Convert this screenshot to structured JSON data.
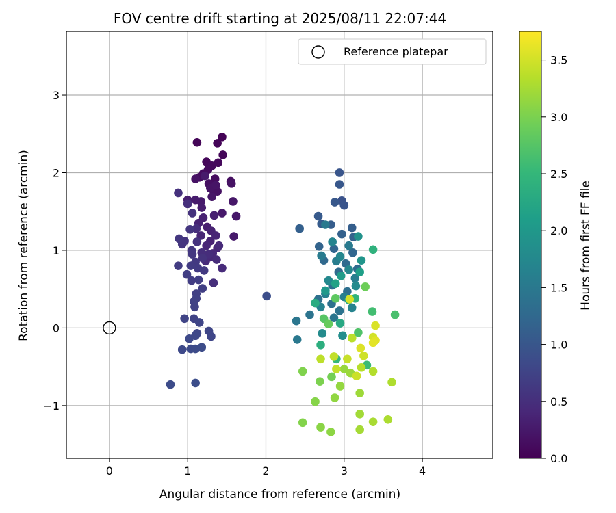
{
  "chart_data": {
    "type": "scatter",
    "title": "FOV centre drift starting at 2025/08/11 22:07:44",
    "xlabel": "Angular distance from reference (arcmin)",
    "ylabel": "Rotation from reference (arcmin)",
    "xlim": [
      -0.55,
      4.9
    ],
    "ylim": [
      -1.68,
      3.82
    ],
    "xticks": [
      0,
      1,
      2,
      3,
      4
    ],
    "yticks": [
      -1,
      0,
      1,
      2,
      3
    ],
    "xtick_labels": [
      "0",
      "1",
      "2",
      "3",
      "4"
    ],
    "ytick_labels": [
      "−1",
      "0",
      "1",
      "2",
      "3"
    ],
    "grid": true,
    "legend": {
      "placement": "top-right",
      "entries": [
        {
          "label": "Reference platepar"
        }
      ]
    },
    "reference_point": {
      "x": 0,
      "y": 0
    },
    "colorbar": {
      "label": "Hours from first FF file",
      "range": [
        0,
        3.75
      ],
      "ticks": [
        0,
        0.5,
        1,
        1.5,
        2,
        2.5,
        3,
        3.5
      ],
      "tick_labels": [
        "0.0",
        "0.5",
        "1.0",
        "1.5",
        "2.0",
        "2.5",
        "3.0",
        "3.5"
      ],
      "colormap": "viridis"
    },
    "points": [
      [
        1.44,
        2.46,
        0.02
      ],
      [
        1.38,
        2.38,
        0.03
      ],
      [
        1.12,
        2.39,
        0.04
      ],
      [
        1.45,
        2.23,
        0.05
      ],
      [
        1.24,
        2.14,
        0.06
      ],
      [
        1.39,
        2.13,
        0.08
      ],
      [
        1.31,
        2.09,
        0.09
      ],
      [
        1.26,
        2.04,
        0.1
      ],
      [
        1.2,
        1.99,
        0.11
      ],
      [
        1.35,
        1.92,
        0.12
      ],
      [
        1.15,
        1.94,
        0.13
      ],
      [
        1.55,
        1.89,
        0.14
      ],
      [
        1.27,
        1.86,
        0.15
      ],
      [
        1.33,
        1.77,
        0.16
      ],
      [
        1.38,
        1.76,
        0.17
      ],
      [
        1.1,
        1.92,
        0.18
      ],
      [
        1.56,
        1.86,
        0.19
      ],
      [
        1.29,
        1.8,
        0.2
      ],
      [
        1.36,
        1.84,
        0.21
      ],
      [
        1.31,
        1.69,
        0.22
      ],
      [
        1.58,
        1.63,
        0.23
      ],
      [
        1.62,
        1.44,
        0.24
      ],
      [
        1.44,
        1.48,
        0.25
      ],
      [
        1.59,
        1.18,
        0.26
      ],
      [
        1.22,
        1.96,
        0.27
      ],
      [
        1.17,
        1.63,
        0.28
      ],
      [
        1.1,
        1.65,
        0.29
      ],
      [
        1.18,
        1.55,
        0.3
      ],
      [
        1.0,
        1.65,
        0.31
      ],
      [
        1.25,
        1.3,
        0.32
      ],
      [
        1.34,
        1.45,
        0.33
      ],
      [
        1.2,
        1.42,
        0.34
      ],
      [
        1.3,
        1.25,
        0.35
      ],
      [
        1.14,
        1.35,
        0.36
      ],
      [
        1.29,
        1.12,
        0.37
      ],
      [
        1.36,
        1.19,
        0.38
      ],
      [
        1.17,
        1.19,
        0.39
      ],
      [
        1.38,
        1.03,
        0.4
      ],
      [
        1.24,
        1.06,
        0.41
      ],
      [
        1.28,
        0.91,
        0.42
      ],
      [
        1.32,
        0.96,
        0.43
      ],
      [
        1.4,
        1.06,
        0.44
      ],
      [
        1.23,
        0.86,
        0.45
      ],
      [
        1.44,
        0.77,
        0.46
      ],
      [
        1.37,
        0.88,
        0.47
      ],
      [
        1.27,
        0.95,
        0.48
      ],
      [
        1.18,
        0.97,
        0.49
      ],
      [
        1.33,
        0.58,
        0.5
      ],
      [
        1.11,
        1.28,
        0.51
      ],
      [
        1.0,
        1.6,
        0.52
      ],
      [
        0.88,
        1.74,
        0.53
      ],
      [
        1.06,
        1.48,
        0.54
      ],
      [
        1.19,
        0.9,
        0.55
      ],
      [
        1.12,
        1.11,
        0.56
      ],
      [
        0.96,
        1.12,
        0.57
      ],
      [
        0.93,
        1.08,
        0.58
      ],
      [
        1.03,
        1.27,
        0.59
      ],
      [
        0.89,
        1.15,
        0.6
      ],
      [
        1.05,
        1.0,
        0.61
      ],
      [
        1.06,
        0.95,
        0.62
      ],
      [
        1.1,
        0.85,
        0.63
      ],
      [
        1.21,
        0.74,
        0.64
      ],
      [
        1.13,
        0.77,
        0.65
      ],
      [
        1.04,
        0.8,
        0.66
      ],
      [
        0.88,
        0.8,
        0.67
      ],
      [
        1.05,
        0.61,
        0.68
      ],
      [
        0.99,
        0.69,
        0.69
      ],
      [
        1.14,
        0.62,
        0.7
      ],
      [
        1.19,
        0.51,
        0.71
      ],
      [
        1.11,
        0.44,
        0.72
      ],
      [
        1.11,
        0.38,
        0.73
      ],
      [
        1.08,
        0.34,
        0.74
      ],
      [
        1.09,
        0.27,
        0.75
      ],
      [
        1.08,
        0.12,
        0.76
      ],
      [
        0.96,
        0.12,
        0.77
      ],
      [
        1.15,
        0.07,
        0.78
      ],
      [
        1.27,
        -0.04,
        0.79
      ],
      [
        1.3,
        -0.11,
        0.8
      ],
      [
        1.12,
        -0.07,
        0.81
      ],
      [
        1.1,
        -0.1,
        0.82
      ],
      [
        1.02,
        -0.14,
        0.83
      ],
      [
        0.93,
        -0.28,
        0.84
      ],
      [
        1.04,
        -0.27,
        0.85
      ],
      [
        1.1,
        -0.27,
        0.86
      ],
      [
        1.18,
        -0.25,
        0.87
      ],
      [
        0.78,
        -0.73,
        0.88
      ],
      [
        1.1,
        -0.71,
        0.89
      ],
      [
        2.01,
        0.41,
        0.9
      ],
      [
        2.97,
        1.64,
        0.95
      ],
      [
        3.0,
        1.58,
        0.98
      ],
      [
        2.94,
        2.0,
        1.0
      ],
      [
        2.94,
        1.85,
        1.02
      ],
      [
        2.88,
        1.62,
        1.04
      ],
      [
        2.67,
        1.44,
        1.06
      ],
      [
        2.71,
        1.34,
        1.08
      ],
      [
        2.83,
        1.33,
        1.1
      ],
      [
        3.1,
        1.29,
        1.12
      ],
      [
        2.43,
        1.28,
        1.14
      ],
      [
        2.97,
        1.21,
        1.16
      ],
      [
        3.12,
        1.17,
        1.18
      ],
      [
        2.68,
        1.05,
        1.2
      ],
      [
        2.87,
        1.02,
        1.22
      ],
      [
        3.11,
        0.97,
        1.24
      ],
      [
        2.74,
        0.87,
        1.26
      ],
      [
        3.02,
        0.83,
        1.28
      ],
      [
        2.93,
        0.72,
        1.3
      ],
      [
        3.17,
        0.76,
        1.32
      ],
      [
        2.85,
        0.55,
        1.34
      ],
      [
        3.04,
        0.47,
        1.36
      ],
      [
        2.67,
        0.37,
        1.38
      ],
      [
        2.84,
        0.31,
        1.4
      ],
      [
        2.94,
        0.22,
        1.42
      ],
      [
        2.56,
        0.17,
        1.44
      ],
      [
        2.87,
        0.13,
        1.46
      ],
      [
        2.39,
        0.09,
        1.48
      ],
      [
        2.4,
        -0.15,
        1.5
      ],
      [
        2.76,
        1.33,
        1.52
      ],
      [
        3.06,
        1.06,
        1.54
      ],
      [
        2.71,
        0.93,
        1.56
      ],
      [
        2.9,
        0.86,
        1.58
      ],
      [
        3.14,
        0.64,
        1.6
      ],
      [
        2.76,
        0.44,
        1.62
      ],
      [
        3.0,
        0.4,
        1.64
      ],
      [
        2.7,
        0.27,
        1.66
      ],
      [
        3.1,
        0.26,
        1.68
      ],
      [
        2.85,
        1.11,
        1.7
      ],
      [
        2.95,
        0.92,
        1.72
      ],
      [
        3.06,
        0.75,
        1.74
      ],
      [
        2.8,
        0.61,
        1.76
      ],
      [
        3.15,
        0.54,
        1.78
      ],
      [
        2.72,
        -0.07,
        1.8
      ],
      [
        2.98,
        -0.1,
        1.85
      ],
      [
        3.18,
        1.18,
        1.9
      ],
      [
        3.22,
        0.87,
        1.95
      ],
      [
        2.76,
        0.48,
        2.0
      ],
      [
        2.96,
        0.67,
        2.05
      ],
      [
        3.2,
        0.72,
        2.1
      ],
      [
        2.89,
        0.57,
        2.15
      ],
      [
        3.06,
        0.36,
        2.2
      ],
      [
        2.95,
        0.06,
        2.25
      ],
      [
        2.63,
        0.32,
        2.3
      ],
      [
        2.7,
        -0.22,
        2.35
      ],
      [
        3.37,
        1.01,
        2.4
      ],
      [
        3.14,
        0.38,
        2.45
      ],
      [
        2.9,
        -0.4,
        2.5
      ],
      [
        3.29,
        -0.48,
        2.55
      ],
      [
        3.36,
        0.21,
        2.6
      ],
      [
        3.65,
        0.17,
        2.65
      ],
      [
        3.18,
        -0.06,
        2.7
      ],
      [
        2.74,
        0.12,
        2.75
      ],
      [
        2.89,
        0.38,
        2.8
      ],
      [
        2.8,
        0.05,
        2.85
      ],
      [
        3.27,
        0.53,
        2.9
      ],
      [
        2.84,
        -0.63,
        2.95
      ],
      [
        2.69,
        -0.69,
        3.0
      ],
      [
        2.47,
        -0.56,
        3.02
      ],
      [
        2.47,
        -1.22,
        3.04
      ],
      [
        2.63,
        -0.95,
        3.06
      ],
      [
        2.7,
        -1.28,
        3.08
      ],
      [
        2.83,
        -1.34,
        3.1
      ],
      [
        2.88,
        -0.9,
        3.12
      ],
      [
        2.95,
        -0.75,
        3.14
      ],
      [
        3.0,
        -0.53,
        3.16
      ],
      [
        3.08,
        -0.58,
        3.18
      ],
      [
        3.2,
        -0.84,
        3.2
      ],
      [
        3.2,
        -1.11,
        3.22
      ],
      [
        3.2,
        -1.31,
        3.24
      ],
      [
        3.37,
        -1.21,
        3.26
      ],
      [
        3.56,
        -1.18,
        3.28
      ],
      [
        3.61,
        -0.7,
        3.3
      ],
      [
        3.37,
        -0.56,
        3.32
      ],
      [
        3.22,
        -0.51,
        3.34
      ],
      [
        3.1,
        -0.13,
        3.36
      ],
      [
        2.7,
        -0.4,
        3.38
      ],
      [
        2.87,
        -0.37,
        3.4
      ],
      [
        2.9,
        -0.53,
        3.42
      ],
      [
        3.04,
        -0.4,
        3.44
      ],
      [
        3.16,
        -0.62,
        3.46
      ],
      [
        3.25,
        -0.36,
        3.48
      ],
      [
        3.37,
        -0.12,
        3.5
      ],
      [
        3.07,
        0.37,
        3.52
      ],
      [
        3.4,
        0.03,
        3.54
      ],
      [
        3.21,
        -0.26,
        3.56
      ],
      [
        3.4,
        -0.16,
        3.58
      ],
      [
        3.37,
        -0.19,
        3.6
      ]
    ]
  }
}
